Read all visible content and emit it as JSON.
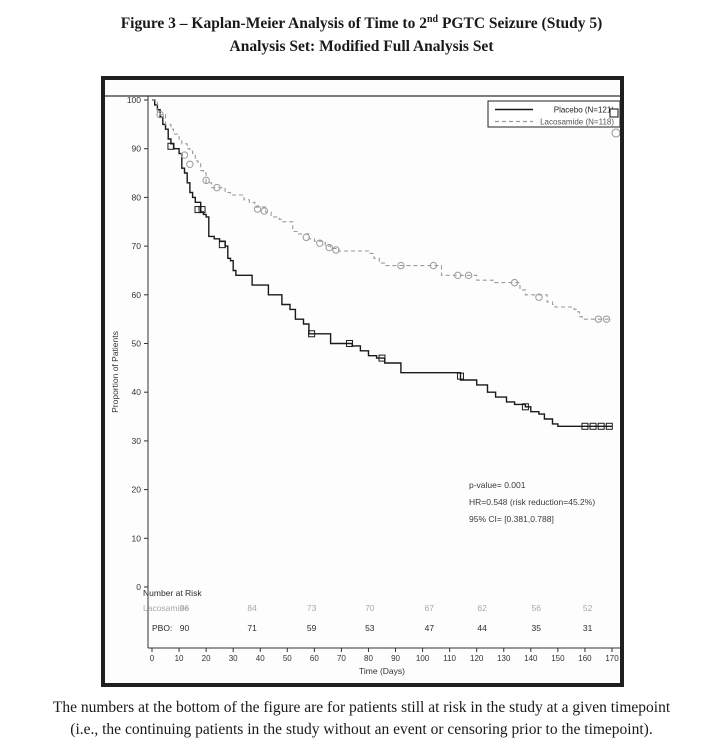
{
  "title": {
    "line1_prefix": "Figure 3 – Kaplan-Meier Analysis of Time to 2",
    "line1_sup": "nd",
    "line1_suffix": " PGTC Seizure (Study 5)",
    "line2": "Analysis Set: Modified Full Analysis Set"
  },
  "caption": {
    "line1": "The numbers at the bottom of the figure are for patients still at risk in the study at a given timepoint",
    "line2": "(i.e., the continuing patients in the study without an event or censoring prior to the timepoint)."
  },
  "colors": {
    "placebo": "#1a1a1a",
    "lacosamide": "#9a9a9a",
    "risk_lacosamide_text": "#a8a8a8",
    "axis": "#333333",
    "border": "#1f1f1f"
  },
  "chart_data": {
    "type": "line",
    "subtype": "kaplan-meier-step",
    "xlabel": "Time (Days)",
    "ylabel": "Proportion of Patients",
    "xlim": [
      0,
      170
    ],
    "ylim": [
      0,
      100
    ],
    "x_ticks": [
      0,
      10,
      20,
      30,
      40,
      50,
      60,
      70,
      80,
      90,
      100,
      110,
      120,
      130,
      140,
      150,
      160,
      170
    ],
    "y_ticks": [
      0,
      10,
      20,
      30,
      40,
      50,
      60,
      70,
      80,
      90,
      100
    ],
    "grid": false,
    "legend": {
      "position": "top-right",
      "entries": [
        {
          "label": "Placebo (N=121)",
          "line": "solid-black",
          "marker": "square"
        },
        {
          "label": "Lacosamide (N=118)",
          "line": "dashed-gray",
          "marker": "circle"
        }
      ]
    },
    "annotations": [
      "p-value= 0.001",
      "HR=0.548 (risk reduction=45.2%)",
      "95% CI= [0.381,0.788]"
    ],
    "series": [
      {
        "name": "Placebo (N=121)",
        "style": "solid",
        "points": [
          [
            0,
            100
          ],
          [
            1,
            99
          ],
          [
            2,
            98
          ],
          [
            3,
            96.5
          ],
          [
            4,
            95
          ],
          [
            5,
            94
          ],
          [
            6,
            92
          ],
          [
            7,
            91
          ],
          [
            8,
            90
          ],
          [
            10,
            89
          ],
          [
            11,
            86
          ],
          [
            12,
            85
          ],
          [
            13,
            83
          ],
          [
            14,
            81
          ],
          [
            15,
            80
          ],
          [
            16,
            79
          ],
          [
            18,
            77
          ],
          [
            19,
            76.5
          ],
          [
            20,
            76
          ],
          [
            21,
            72
          ],
          [
            23,
            71.5
          ],
          [
            25,
            71
          ],
          [
            27,
            70
          ],
          [
            28,
            67.5
          ],
          [
            29,
            67
          ],
          [
            30,
            65
          ],
          [
            31,
            64
          ],
          [
            36,
            64
          ],
          [
            37,
            62
          ],
          [
            42,
            62
          ],
          [
            43,
            60
          ],
          [
            47,
            60
          ],
          [
            48,
            58
          ],
          [
            50,
            58
          ],
          [
            51,
            57
          ],
          [
            53,
            55
          ],
          [
            56,
            54
          ],
          [
            58,
            52
          ],
          [
            66,
            50
          ],
          [
            74,
            49.5
          ],
          [
            77,
            48.5
          ],
          [
            80,
            47.5
          ],
          [
            83,
            47
          ],
          [
            86,
            46
          ],
          [
            92,
            44
          ],
          [
            113,
            44
          ],
          [
            114,
            42.5
          ],
          [
            120,
            41.5
          ],
          [
            124,
            40
          ],
          [
            127,
            39
          ],
          [
            131,
            38
          ],
          [
            134,
            37.5
          ],
          [
            138,
            37
          ],
          [
            140,
            36
          ],
          [
            143,
            35.5
          ],
          [
            145,
            34.5
          ],
          [
            148,
            33.5
          ],
          [
            150,
            33
          ],
          [
            170,
            33
          ]
        ],
        "censor_marks": [
          [
            7,
            90.5
          ],
          [
            17,
            77.5
          ],
          [
            18.5,
            77.5
          ],
          [
            26,
            70.3
          ],
          [
            59,
            52
          ],
          [
            73,
            50
          ],
          [
            85,
            47
          ],
          [
            114,
            43.3
          ],
          [
            138,
            37
          ],
          [
            160,
            33
          ],
          [
            163,
            33
          ],
          [
            166,
            33
          ],
          [
            169,
            33
          ]
        ]
      },
      {
        "name": "Lacosamide (N=118)",
        "style": "dashed",
        "points": [
          [
            0,
            100
          ],
          [
            2,
            97.5
          ],
          [
            3,
            97
          ],
          [
            5,
            95
          ],
          [
            7,
            94
          ],
          [
            8,
            93
          ],
          [
            10,
            92
          ],
          [
            11,
            91
          ],
          [
            13,
            90
          ],
          [
            14,
            89.5
          ],
          [
            15,
            89
          ],
          [
            16,
            87.5
          ],
          [
            17,
            87
          ],
          [
            18,
            85.5
          ],
          [
            19,
            85
          ],
          [
            20,
            83
          ],
          [
            22,
            82
          ],
          [
            26,
            82
          ],
          [
            27,
            81
          ],
          [
            29,
            80.5
          ],
          [
            33,
            80.5
          ],
          [
            34,
            79.5
          ],
          [
            36,
            79
          ],
          [
            38,
            78
          ],
          [
            42,
            77
          ],
          [
            44,
            76
          ],
          [
            47,
            75.5
          ],
          [
            48,
            75
          ],
          [
            52,
            73
          ],
          [
            54,
            72.5
          ],
          [
            58,
            71.5
          ],
          [
            60,
            71
          ],
          [
            64,
            70
          ],
          [
            66,
            69.5
          ],
          [
            69,
            69
          ],
          [
            80,
            68.5
          ],
          [
            82,
            67.5
          ],
          [
            84,
            66.5
          ],
          [
            86,
            66
          ],
          [
            106,
            66
          ],
          [
            107,
            64
          ],
          [
            119,
            64
          ],
          [
            120,
            63
          ],
          [
            125,
            63
          ],
          [
            126,
            62.5
          ],
          [
            135,
            62.5
          ],
          [
            136,
            61
          ],
          [
            138,
            60
          ],
          [
            145,
            60
          ],
          [
            146,
            58.5
          ],
          [
            148,
            58
          ],
          [
            149,
            57.5
          ],
          [
            156,
            57
          ],
          [
            157,
            56.5
          ],
          [
            158,
            55.5
          ],
          [
            159,
            55
          ],
          [
            170,
            55
          ]
        ],
        "censor_marks": [
          [
            3,
            97
          ],
          [
            12,
            88.7
          ],
          [
            14,
            86.8
          ],
          [
            20,
            83.5
          ],
          [
            24,
            82
          ],
          [
            39,
            77.6
          ],
          [
            41.5,
            77.2
          ],
          [
            57,
            71.8
          ],
          [
            62,
            70.6
          ],
          [
            65.5,
            69.7
          ],
          [
            68,
            69.2
          ],
          [
            92,
            66
          ],
          [
            104,
            66
          ],
          [
            113,
            64
          ],
          [
            117,
            64
          ],
          [
            134,
            62.5
          ],
          [
            143,
            59.5
          ],
          [
            165,
            55
          ],
          [
            168,
            55
          ]
        ]
      }
    ],
    "number_at_risk": {
      "header": "Number at Risk",
      "timepoints": [
        12,
        37,
        59,
        80.5,
        102.5,
        122,
        142,
        161
      ],
      "rows": [
        {
          "label": "Lacosamide",
          "values": [
            96,
            84,
            73,
            70,
            67,
            62,
            56,
            52
          ]
        },
        {
          "label": "PBO:",
          "values": [
            90,
            71,
            59,
            53,
            47,
            44,
            35,
            31
          ]
        }
      ]
    }
  }
}
